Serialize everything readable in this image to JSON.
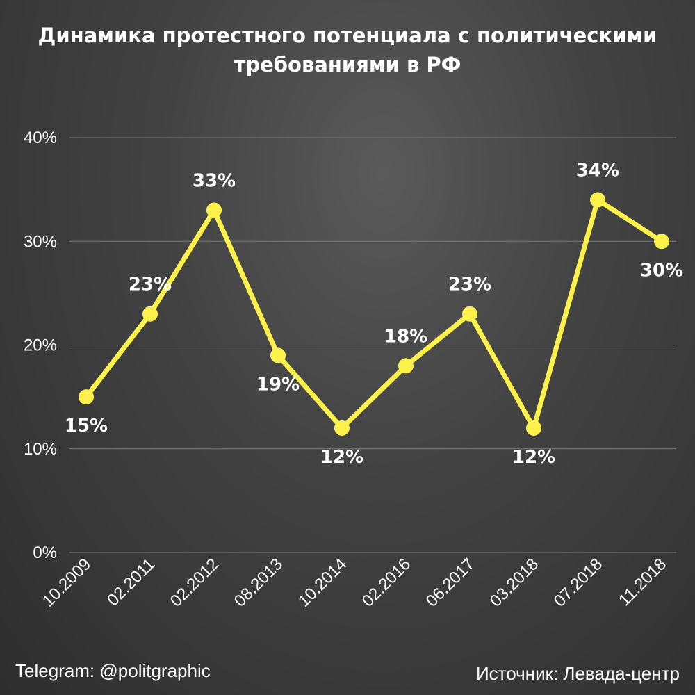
{
  "title": {
    "line1": "Динамика протестного потенциала с политическими",
    "line2": "требованиями в РФ"
  },
  "footer": {
    "telegram": "Telegram: @politgraphic",
    "source": "Источник: Левада-центр"
  },
  "colors": {
    "line": "#fbf14a",
    "grid": "#7a7a7a",
    "text": "#ffffff"
  },
  "chart_data": {
    "type": "line",
    "title": "Динамика протестного потенциала с политическими требованиями в РФ",
    "categories": [
      "10.2009",
      "02.2011",
      "02.2012",
      "08.2013",
      "10.2014",
      "02.2016",
      "06.2017",
      "03.2018",
      "07.2018",
      "11.2018"
    ],
    "values": [
      15,
      23,
      33,
      19,
      12,
      18,
      23,
      12,
      34,
      30
    ],
    "data_labels": [
      "15%",
      "23%",
      "33%",
      "19%",
      "12%",
      "18%",
      "23%",
      "12%",
      "34%",
      "30%"
    ],
    "label_position": [
      "below",
      "above",
      "above",
      "below",
      "below",
      "above",
      "above",
      "below",
      "above",
      "below"
    ],
    "y_ticks": [
      0,
      10,
      20,
      30,
      40
    ],
    "y_tick_labels": [
      "0%",
      "10%",
      "20%",
      "30%",
      "40%"
    ],
    "ylim": [
      0,
      40
    ],
    "grid": true,
    "legend": false
  }
}
